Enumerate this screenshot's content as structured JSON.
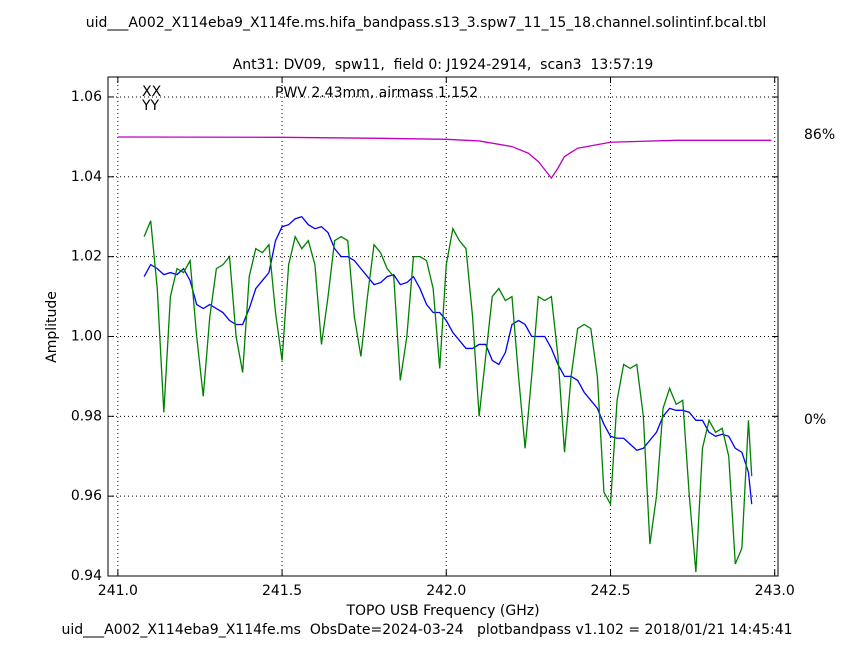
{
  "chart_data": {
    "type": "line",
    "title": "uid___A002_X114eba9_X114fe.ms.hifa_bandpass.s13_3.spw7_11_15_18.channel.solintinf.bcal.tbl",
    "subtitle": "Ant31: DV09,  spw11,  field 0: J1924-2914,  scan3  13:57:19",
    "annotation": "PWV 2.43mm, airmass 1.152",
    "annotation_color": "#c000c0",
    "footer": "uid___A002_X114eba9_X114fe.ms  ObsDate=2024-03-24   plotbandpass v1.102 = 2018/01/21 14:45:41",
    "xlabel": "TOPO USB Frequency (GHz)",
    "ylabel": "Amplitude",
    "xlim": [
      240.97,
      243.01
    ],
    "ylim": [
      0.94,
      1.065
    ],
    "y2lim": [
      -47.1,
      103.5
    ],
    "xticks": [
      {
        "value": 241.0,
        "label": "241.0"
      },
      {
        "value": 241.5,
        "label": "241.5"
      },
      {
        "value": 242.0,
        "label": "242.0"
      },
      {
        "value": 242.5,
        "label": "242.5"
      },
      {
        "value": 243.0,
        "label": "243.0"
      }
    ],
    "yticks": [
      0.94,
      0.96,
      0.98,
      {
        "value": 1.0,
        "label": "1.00"
      },
      1.02,
      1.04,
      1.06
    ],
    "y2ticks": [
      {
        "value": 86,
        "label": "86%"
      },
      {
        "value": 0,
        "label": "0%"
      }
    ],
    "grid": true,
    "legend": "upper left",
    "x": [
      241.08,
      241.1,
      241.12,
      241.14,
      241.16,
      241.18,
      241.2,
      241.22,
      241.24,
      241.26,
      241.28,
      241.3,
      241.32,
      241.34,
      241.36,
      241.38,
      241.4,
      241.42,
      241.44,
      241.46,
      241.48,
      241.5,
      241.52,
      241.54,
      241.56,
      241.58,
      241.6,
      241.62,
      241.64,
      241.66,
      241.68,
      241.7,
      241.72,
      241.74,
      241.76,
      241.78,
      241.8,
      241.82,
      241.84,
      241.86,
      241.88,
      241.9,
      241.92,
      241.94,
      241.96,
      241.98,
      242.0,
      242.02,
      242.04,
      242.06,
      242.08,
      242.1,
      242.12,
      242.14,
      242.16,
      242.18,
      242.2,
      242.22,
      242.24,
      242.26,
      242.28,
      242.3,
      242.32,
      242.34,
      242.36,
      242.38,
      242.4,
      242.42,
      242.44,
      242.46,
      242.48,
      242.5,
      242.52,
      242.54,
      242.56,
      242.58,
      242.6,
      242.62,
      242.64,
      242.66,
      242.68,
      242.7,
      242.72,
      242.74,
      242.76,
      242.78,
      242.8,
      242.82,
      242.84,
      242.86,
      242.88,
      242.9,
      242.92,
      242.93
    ],
    "series": [
      {
        "name": "XX",
        "color": "#0000ff",
        "values": [
          1.015,
          1.018,
          1.017,
          1.0155,
          1.016,
          1.0155,
          1.017,
          1.014,
          1.008,
          1.007,
          1.008,
          1.007,
          1.006,
          1.004,
          1.003,
          1.003,
          1.007,
          1.012,
          1.014,
          1.016,
          1.024,
          1.0275,
          1.028,
          1.0295,
          1.03,
          1.028,
          1.027,
          1.0275,
          1.026,
          1.022,
          1.02,
          1.02,
          1.019,
          1.017,
          1.015,
          1.013,
          1.0135,
          1.015,
          1.0155,
          1.013,
          1.0135,
          1.015,
          1.012,
          1.008,
          1.006,
          1.006,
          1.004,
          1.001,
          0.999,
          0.997,
          0.997,
          0.998,
          0.998,
          0.994,
          0.993,
          0.996,
          1.003,
          1.004,
          1.003,
          1.0,
          1.0,
          1.0,
          0.997,
          0.993,
          0.99,
          0.99,
          0.989,
          0.986,
          0.984,
          0.982,
          0.978,
          0.975,
          0.9745,
          0.9745,
          0.973,
          0.9715,
          0.972,
          0.974,
          0.976,
          0.98,
          0.982,
          0.9815,
          0.9815,
          0.981,
          0.979,
          0.979,
          0.976,
          0.975,
          0.9755,
          0.975,
          0.972,
          0.971,
          0.966,
          0.958
        ]
      },
      {
        "name": "YY",
        "color": "#008000",
        "values": [
          1.025,
          1.029,
          1.012,
          0.981,
          1.01,
          1.017,
          1.016,
          1.019,
          1.0,
          0.985,
          1.005,
          1.017,
          1.018,
          1.02,
          1.0,
          0.991,
          1.015,
          1.022,
          1.021,
          1.023,
          1.006,
          0.994,
          1.018,
          1.025,
          1.022,
          1.024,
          1.018,
          0.998,
          1.01,
          1.024,
          1.025,
          1.024,
          1.005,
          0.995,
          1.01,
          1.023,
          1.021,
          1.017,
          1.015,
          0.989,
          1.0,
          1.02,
          1.02,
          1.019,
          1.012,
          0.992,
          1.018,
          1.027,
          1.024,
          1.022,
          1.005,
          0.98,
          0.995,
          1.01,
          1.012,
          1.009,
          1.01,
          0.99,
          0.972,
          0.99,
          1.01,
          1.009,
          1.01,
          0.995,
          0.971,
          0.99,
          1.002,
          1.003,
          1.002,
          0.99,
          0.961,
          0.958,
          0.984,
          0.993,
          0.992,
          0.993,
          0.98,
          0.948,
          0.96,
          0.982,
          0.987,
          0.983,
          0.984,
          0.96,
          0.941,
          0.972,
          0.979,
          0.976,
          0.977,
          0.97,
          0.943,
          0.947,
          0.979,
          0.965
        ]
      },
      {
        "color": "#c000c0",
        "axis": "y2",
        "x": [
          241.0,
          241.5,
          241.8,
          242.0,
          242.1,
          242.2,
          242.25,
          242.28,
          242.3,
          242.32,
          242.34,
          242.36,
          242.4,
          242.5,
          242.7,
          242.99
        ],
        "values": [
          85.4,
          85.3,
          85.0,
          84.7,
          84.2,
          82.5,
          80.5,
          78.0,
          75.5,
          73.0,
          76.0,
          79.5,
          82.0,
          83.8,
          84.4,
          84.4
        ]
      }
    ]
  }
}
